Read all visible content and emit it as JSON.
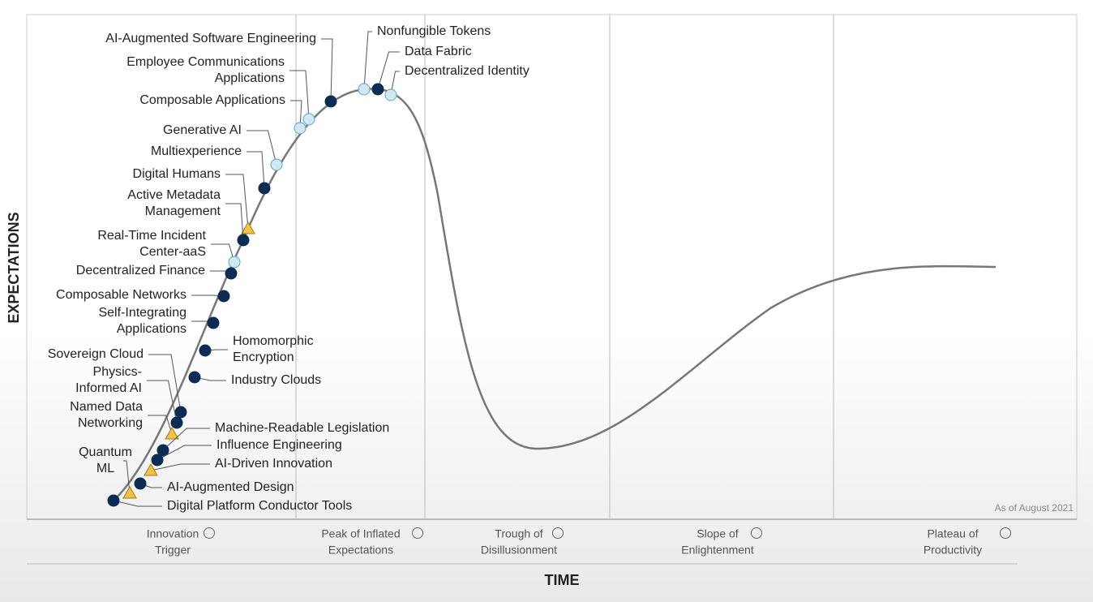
{
  "axes": {
    "y": "EXPECTATIONS",
    "x": "TIME"
  },
  "note": "As of August 2021",
  "phases": [
    {
      "lines": [
        "Innovation",
        "Trigger"
      ]
    },
    {
      "lines": [
        "Peak of Inflated",
        "Expectations"
      ]
    },
    {
      "lines": [
        "Trough of",
        "Disillusionment"
      ]
    },
    {
      "lines": [
        "Slope of",
        "Enlightenment"
      ]
    },
    {
      "lines": [
        "Plateau of",
        "Productivity"
      ]
    }
  ],
  "nodes": [
    {
      "lines": [
        "AI-Augmented Software Engineering"
      ]
    },
    {
      "lines": [
        "Employee Communications",
        "Applications"
      ]
    },
    {
      "lines": [
        "Composable Applications"
      ]
    },
    {
      "lines": [
        "Nonfungible Tokens"
      ]
    },
    {
      "lines": [
        "Data Fabric"
      ]
    },
    {
      "lines": [
        "Decentralized Identity"
      ]
    },
    {
      "lines": [
        "Generative AI"
      ]
    },
    {
      "lines": [
        "Multiexperience"
      ]
    },
    {
      "lines": [
        "Digital Humans"
      ]
    },
    {
      "lines": [
        "Active Metadata",
        "Management"
      ]
    },
    {
      "lines": [
        "Real-Time Incident",
        "Center-aaS"
      ]
    },
    {
      "lines": [
        "Decentralized Finance"
      ]
    },
    {
      "lines": [
        "Composable Networks"
      ]
    },
    {
      "lines": [
        "Self-Integrating",
        "Applications"
      ]
    },
    {
      "lines": [
        "Homomorphic",
        "Encryption"
      ]
    },
    {
      "lines": [
        "Industry Clouds"
      ]
    },
    {
      "lines": [
        "Sovereign Cloud"
      ]
    },
    {
      "lines": [
        "Physics-",
        "Informed AI"
      ]
    },
    {
      "lines": [
        "Named Data",
        "Networking"
      ]
    },
    {
      "lines": [
        "Machine-Readable Legislation"
      ]
    },
    {
      "lines": [
        "Influence Engineering"
      ]
    },
    {
      "lines": [
        "AI-Driven Innovation"
      ]
    },
    {
      "lines": [
        "Quantum",
        "ML"
      ]
    },
    {
      "lines": [
        "AI-Augmented Design"
      ]
    },
    {
      "lines": [
        "Digital Platform Conductor Tools"
      ]
    }
  ]
}
